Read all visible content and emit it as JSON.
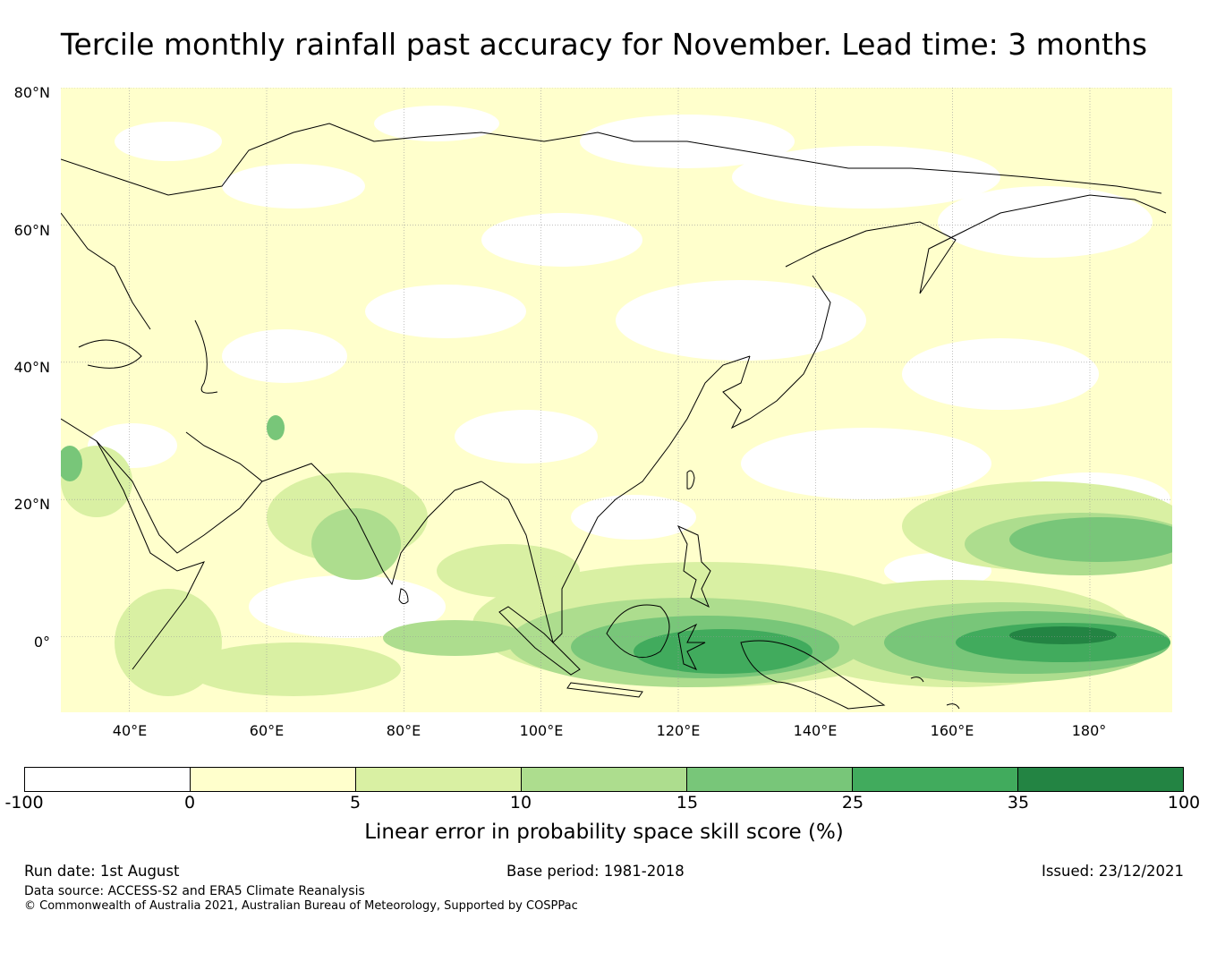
{
  "title": "Tercile monthly rainfall past accuracy for November. Lead time: 3 months",
  "map": {
    "lat_labels": [
      "80°N",
      "60°N",
      "40°N",
      "20°N",
      "0°"
    ],
    "lon_labels": [
      "40°E",
      "60°E",
      "80°E",
      "100°E",
      "120°E",
      "140°E",
      "160°E",
      "180°"
    ],
    "extent": {
      "lon_min": 30,
      "lon_max": 192,
      "lat_min": -11,
      "lat_max": 80
    },
    "land_outline_color": "#000000",
    "gridline_color": "#999999"
  },
  "colorbar": {
    "ticks": [
      "-100",
      "0",
      "5",
      "10",
      "15",
      "25",
      "35",
      "100"
    ],
    "colors": [
      "#ffffff",
      "#ffffcc",
      "#d9f0a3",
      "#addd8e",
      "#78c679",
      "#41ab5d",
      "#238443"
    ],
    "label": "Linear error in probability space skill score (%)"
  },
  "footer": {
    "run_date": "Run date: 1st August",
    "base_period": "Base period: 1981-2018",
    "issued": "Issued: 23/12/2021",
    "data_source": "Data source: ACCESS-S2 and ERA5 Climate Reanalysis",
    "copyright": "© Commonwealth of Australia 2021, Australian Bureau of Meteorology, Supported by COSPPac"
  }
}
